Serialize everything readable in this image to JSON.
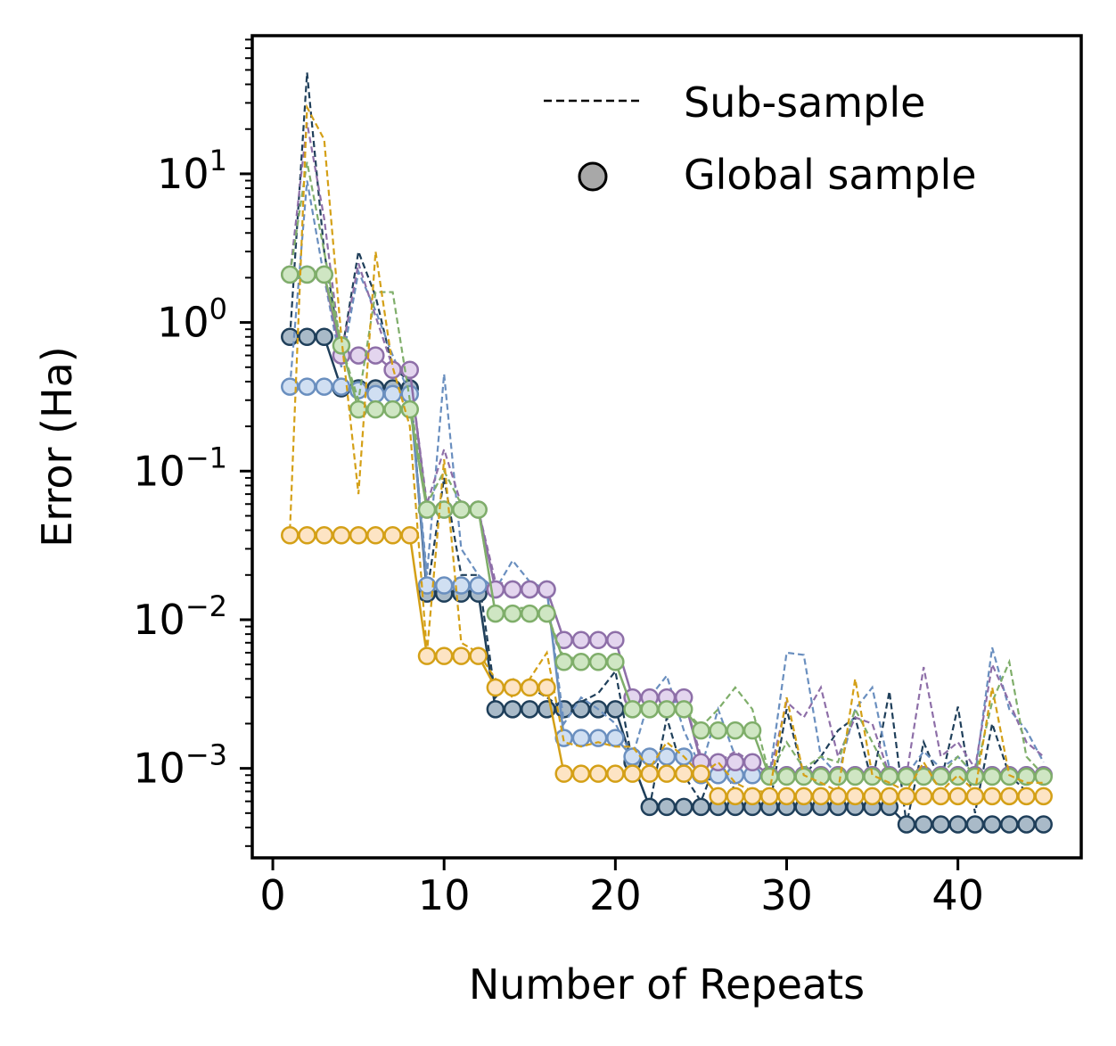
{
  "chart_data": {
    "type": "line",
    "title": "",
    "xlabel": "Number of Repeats",
    "ylabel": "Error (Ha)",
    "xlim": [
      -1.2,
      47.2
    ],
    "ylim": [
      0.00025,
      85
    ],
    "yscale": "log",
    "x_ticks": [
      {
        "value": 0,
        "label": "0"
      },
      {
        "value": 10,
        "label": "10"
      },
      {
        "value": 20,
        "label": "20"
      },
      {
        "value": 30,
        "label": "30"
      },
      {
        "value": 40,
        "label": "40"
      }
    ],
    "y_ticks": [
      {
        "value": 0.001,
        "base": "10",
        "exp": "−3"
      },
      {
        "value": 0.01,
        "base": "10",
        "exp": "−2"
      },
      {
        "value": 0.1,
        "base": "10",
        "exp": "−1"
      },
      {
        "value": 1,
        "base": "10",
        "exp": "0"
      },
      {
        "value": 10,
        "base": "10",
        "exp": "1"
      }
    ],
    "legend": {
      "position": "top-right",
      "entries": [
        {
          "label": "Sub-sample",
          "marker": "dashed-line"
        },
        {
          "label": "Global sample",
          "marker": "circle"
        }
      ]
    },
    "series": [
      {
        "name": "dark-blue",
        "line_color": "#1f3f5a",
        "fill_color": "#a9bac8",
        "x": [
          1,
          2,
          3,
          4,
          5,
          6,
          7,
          8,
          9,
          10,
          11,
          12,
          13,
          14,
          15,
          16,
          17,
          18,
          19,
          20,
          21,
          22,
          23,
          24,
          25,
          26,
          27,
          28,
          29,
          30,
          31,
          32,
          33,
          34,
          35,
          36,
          37,
          38,
          39,
          40,
          41,
          42,
          43,
          44,
          45
        ],
        "global": [
          0.8,
          0.8,
          0.8,
          0.36,
          0.36,
          0.36,
          0.36,
          0.36,
          0.015,
          0.015,
          0.015,
          0.015,
          0.0025,
          0.0025,
          0.0025,
          0.0025,
          0.0025,
          0.0025,
          0.0025,
          0.0025,
          0.0011,
          0.00055,
          0.00055,
          0.00055,
          0.00055,
          0.00055,
          0.00055,
          0.00055,
          0.00055,
          0.00055,
          0.00055,
          0.00055,
          0.00055,
          0.00055,
          0.00055,
          0.00055,
          0.00042,
          0.00042,
          0.00042,
          0.00042,
          0.00042,
          0.00042,
          0.00042,
          0.00042,
          0.00042
        ],
        "sub": [
          0.8,
          48,
          3,
          0.6,
          3,
          1.5,
          0.5,
          0.4,
          0.015,
          0.09,
          0.02,
          0.02,
          0.003,
          0.004,
          0.0035,
          0.003,
          0.0025,
          0.0028,
          0.0032,
          0.0045,
          0.0011,
          0.00055,
          0.0022,
          0.0009,
          0.0006,
          0.0012,
          0.0007,
          0.0006,
          0.00055,
          0.0025,
          0.0009,
          0.0012,
          0.0018,
          0.0022,
          0.0008,
          0.0033,
          0.00042,
          0.0015,
          0.0008,
          0.0026,
          0.0005,
          0.002,
          0.0009,
          0.0007,
          0.0006
        ]
      },
      {
        "name": "light-blue",
        "line_color": "#6a8fbf",
        "fill_color": "#d0dff2",
        "x": [
          1,
          2,
          3,
          4,
          5,
          6,
          7,
          8,
          9,
          10,
          11,
          12,
          13,
          14,
          15,
          16,
          17,
          18,
          19,
          20,
          21,
          22,
          23,
          24,
          25,
          26,
          27,
          28,
          29,
          30,
          31,
          32,
          33,
          34,
          35,
          36,
          37,
          38,
          39,
          40,
          41,
          42,
          43,
          44,
          45
        ],
        "global": [
          0.37,
          0.37,
          0.37,
          0.37,
          0.35,
          0.33,
          0.33,
          0.33,
          0.017,
          0.017,
          0.017,
          0.017,
          0.016,
          0.016,
          0.016,
          0.016,
          0.0016,
          0.0016,
          0.0016,
          0.0016,
          0.0012,
          0.0012,
          0.0012,
          0.0012,
          0.0009,
          0.0009,
          0.0009,
          0.0009,
          0.0009,
          0.0009,
          0.0009,
          0.0009,
          0.0009,
          0.0009,
          0.0009,
          0.0009,
          0.0009,
          0.0009,
          0.0009,
          0.0009,
          0.0009,
          0.0009,
          0.0009,
          0.0009,
          0.0009
        ],
        "sub": [
          0.37,
          9,
          2,
          0.5,
          2.2,
          1.2,
          0.6,
          0.33,
          0.02,
          0.45,
          0.03,
          0.02,
          0.016,
          0.025,
          0.018,
          0.016,
          0.002,
          0.003,
          0.0025,
          0.002,
          0.0012,
          0.003,
          0.0042,
          0.0018,
          0.001,
          0.0025,
          0.0012,
          0.0011,
          0.0009,
          0.006,
          0.0058,
          0.0012,
          0.0009,
          0.0025,
          0.0035,
          0.001,
          0.0009,
          0.0013,
          0.001,
          0.0012,
          0.0009,
          0.0065,
          0.0025,
          0.0018,
          0.0011
        ]
      },
      {
        "name": "purple",
        "line_color": "#8e6fa8",
        "fill_color": "#e3d5ee",
        "x": [
          1,
          2,
          3,
          4,
          5,
          6,
          7,
          8,
          9,
          10,
          11,
          12,
          13,
          14,
          15,
          16,
          17,
          18,
          19,
          20,
          21,
          22,
          23,
          24,
          25,
          26,
          27,
          28,
          29,
          30,
          31,
          32,
          33,
          34,
          35,
          36,
          37,
          38,
          39,
          40,
          41,
          42,
          43,
          44,
          45
        ],
        "global": [
          2.1,
          2.1,
          2.1,
          0.6,
          0.6,
          0.6,
          0.48,
          0.48,
          0.055,
          0.055,
          0.055,
          0.055,
          0.016,
          0.016,
          0.016,
          0.016,
          0.0073,
          0.0073,
          0.0073,
          0.0073,
          0.003,
          0.003,
          0.003,
          0.003,
          0.0011,
          0.0011,
          0.0011,
          0.0011,
          0.0009,
          0.0009,
          0.0009,
          0.0009,
          0.0009,
          0.0009,
          0.0009,
          0.0009,
          0.0009,
          0.0009,
          0.0009,
          0.0009,
          0.0009,
          0.0009,
          0.0009,
          0.0009,
          0.0009
        ],
        "sub": [
          2.1,
          22,
          5,
          0.6,
          2.5,
          1.1,
          0.5,
          0.48,
          0.06,
          0.14,
          0.06,
          0.055,
          0.018,
          0.017,
          0.016,
          0.016,
          0.0073,
          0.0078,
          0.0074,
          0.0073,
          0.003,
          0.0031,
          0.0033,
          0.003,
          0.0012,
          0.0011,
          0.0013,
          0.0011,
          0.0009,
          0.0028,
          0.0022,
          0.0035,
          0.0012,
          0.0022,
          0.002,
          0.0009,
          0.0009,
          0.0048,
          0.0012,
          0.0015,
          0.001,
          0.005,
          0.0028,
          0.0015,
          0.0012
        ]
      },
      {
        "name": "green",
        "line_color": "#7fae6a",
        "fill_color": "#cfe6c3",
        "x": [
          1,
          2,
          3,
          4,
          5,
          6,
          7,
          8,
          9,
          10,
          11,
          12,
          13,
          14,
          15,
          16,
          17,
          18,
          19,
          20,
          21,
          22,
          23,
          24,
          25,
          26,
          27,
          28,
          29,
          30,
          31,
          32,
          33,
          34,
          35,
          36,
          37,
          38,
          39,
          40,
          41,
          42,
          43,
          44,
          45
        ],
        "global": [
          2.1,
          2.1,
          2.1,
          0.7,
          0.26,
          0.26,
          0.26,
          0.26,
          0.055,
          0.055,
          0.055,
          0.055,
          0.011,
          0.011,
          0.011,
          0.011,
          0.0052,
          0.0052,
          0.0052,
          0.0052,
          0.0025,
          0.0025,
          0.0025,
          0.0025,
          0.0018,
          0.0018,
          0.0018,
          0.0018,
          0.00088,
          0.00088,
          0.00088,
          0.00088,
          0.00088,
          0.00088,
          0.00088,
          0.00088,
          0.00088,
          0.00088,
          0.00088,
          0.00088,
          0.00088,
          0.00088,
          0.00088,
          0.00088,
          0.00088
        ],
        "sub": [
          2.1,
          12,
          3,
          0.7,
          0.3,
          1.6,
          1.6,
          0.3,
          0.06,
          0.1,
          0.06,
          0.055,
          0.011,
          0.012,
          0.012,
          0.011,
          0.0055,
          0.0056,
          0.0052,
          0.0052,
          0.0025,
          0.0028,
          0.0026,
          0.0025,
          0.0019,
          0.0025,
          0.0035,
          0.0025,
          0.0009,
          0.0015,
          0.001,
          0.0012,
          0.0011,
          0.0025,
          0.0015,
          0.0009,
          0.0009,
          0.001,
          0.0009,
          0.0012,
          0.0009,
          0.0028,
          0.0052,
          0.0012,
          0.0009
        ]
      },
      {
        "name": "orange",
        "line_color": "#d4a017",
        "fill_color": "#fde4c4",
        "x": [
          1,
          2,
          3,
          4,
          5,
          6,
          7,
          8,
          9,
          10,
          11,
          12,
          13,
          14,
          15,
          16,
          17,
          18,
          19,
          20,
          21,
          22,
          23,
          24,
          25,
          26,
          27,
          28,
          29,
          30,
          31,
          32,
          33,
          34,
          35,
          36,
          37,
          38,
          39,
          40,
          41,
          42,
          43,
          44,
          45
        ],
        "global": [
          0.037,
          0.037,
          0.037,
          0.037,
          0.037,
          0.037,
          0.037,
          0.037,
          0.0057,
          0.0057,
          0.0057,
          0.0057,
          0.0035,
          0.0035,
          0.0035,
          0.0035,
          0.00092,
          0.00092,
          0.00092,
          0.00092,
          0.00092,
          0.00092,
          0.00092,
          0.00092,
          0.00092,
          0.00065,
          0.00065,
          0.00065,
          0.00065,
          0.00065,
          0.00065,
          0.00065,
          0.00065,
          0.00065,
          0.00065,
          0.00065,
          0.00065,
          0.00065,
          0.00065,
          0.00065,
          0.00065,
          0.00065,
          0.00065,
          0.00065,
          0.00065
        ],
        "sub": [
          0.04,
          28,
          17,
          0.8,
          0.07,
          3,
          0.5,
          0.2,
          0.006,
          0.12,
          0.007,
          0.006,
          0.004,
          0.003,
          0.004,
          0.006,
          0.0015,
          0.0014,
          0.0015,
          0.0014,
          0.0014,
          0.001,
          0.0015,
          0.0012,
          0.0009,
          0.0011,
          0.0008,
          0.0007,
          0.0007,
          0.003,
          0.0009,
          0.0008,
          0.0007,
          0.004,
          0.0009,
          0.0008,
          0.0007,
          0.0011,
          0.0007,
          0.0009,
          0.0007,
          0.0035,
          0.0009,
          0.0008,
          0.0008
        ]
      }
    ]
  }
}
